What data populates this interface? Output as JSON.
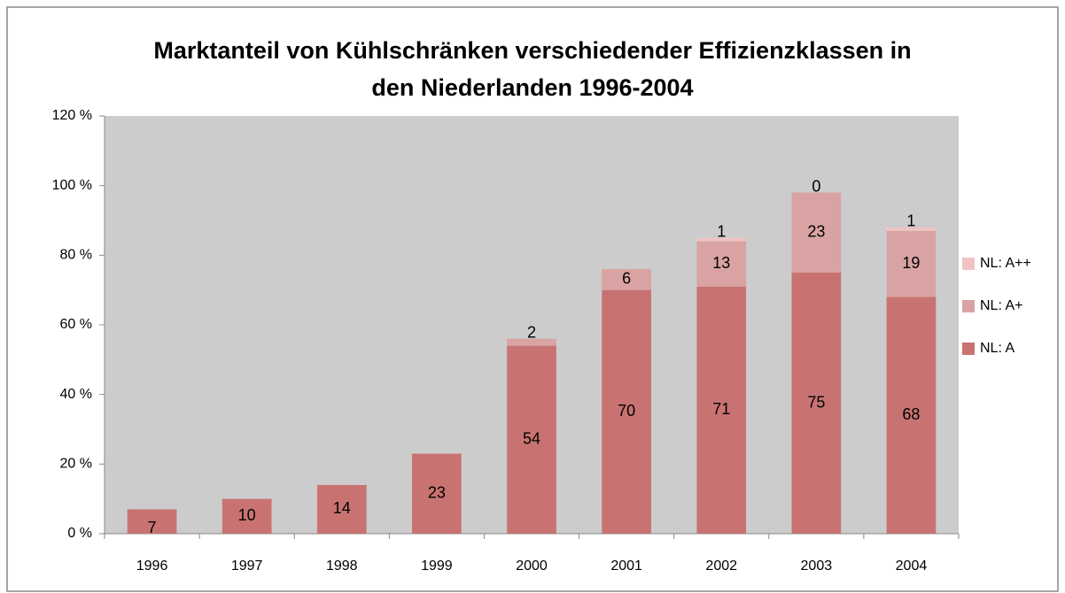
{
  "chart_data": {
    "type": "stacked_bar",
    "title": "Marktanteil von Kühlschränken verschiedender Effizienzklassen in den Niederlanden 1996-2004",
    "categories": [
      "1996",
      "1997",
      "1998",
      "1999",
      "2000",
      "2001",
      "2002",
      "2003",
      "2004"
    ],
    "series": [
      {
        "name": "NL: A",
        "color": "#c87372",
        "values": [
          7,
          10,
          14,
          23,
          54,
          70,
          71,
          75,
          68
        ]
      },
      {
        "name": "NL: A+",
        "color": "#d9a3a3",
        "values": [
          null,
          null,
          null,
          null,
          2,
          6,
          13,
          23,
          19
        ]
      },
      {
        "name": "NL: A++",
        "color": "#efc3c3",
        "values": [
          null,
          null,
          null,
          null,
          null,
          null,
          1,
          0,
          1
        ]
      }
    ],
    "ylim": [
      0,
      120
    ],
    "yticks": [
      {
        "value": 0,
        "label": "0 %"
      },
      {
        "value": 20,
        "label": "20 %"
      },
      {
        "value": 40,
        "label": "40 %"
      },
      {
        "value": 60,
        "label": "60 %"
      },
      {
        "value": 80,
        "label": "80 %"
      },
      {
        "value": 100,
        "label": "100 %"
      },
      {
        "value": 120,
        "label": "120 %"
      }
    ],
    "legend": "right"
  }
}
